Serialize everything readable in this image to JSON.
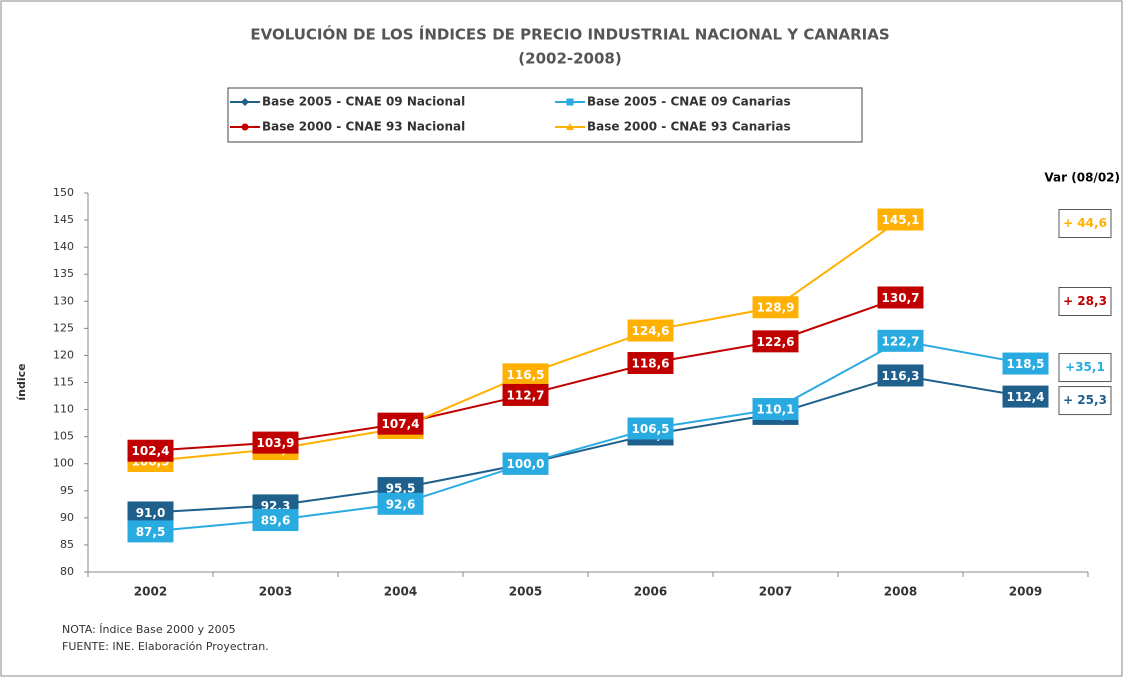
{
  "chart_data": {
    "type": "line",
    "title": "EVOLUCIÓN DE LOS ÍNDICES DE PRECIO INDUSTRIAL NACIONAL Y CANARIAS",
    "subtitle": "(2002-2008)",
    "y_label": "índice",
    "categories": [
      "2002",
      "2003",
      "2004",
      "2005",
      "2006",
      "2007",
      "2008",
      "2009"
    ],
    "ylim": [
      80,
      150
    ],
    "yticks": [
      80,
      85,
      90,
      95,
      100,
      105,
      110,
      115,
      120,
      125,
      130,
      135,
      140,
      145,
      150
    ],
    "var_title": "Var (08/02)",
    "series": [
      {
        "name": "Base 2005 - CNAE 09 Nacional",
        "color": "#1f5f8b",
        "marker": "diamond",
        "values": [
          91.0,
          92.3,
          95.5,
          100.0,
          105.4,
          109.2,
          116.3,
          112.4
        ],
        "value_labels": [
          "91,0",
          "92,3",
          "95,5",
          "100,0",
          "105,4",
          "109,2",
          "116,3",
          "112,4"
        ],
        "var_label": "+ 25,3"
      },
      {
        "name": "Base 2005 - CNAE 09 Canarias",
        "color": "#29abe2",
        "marker": "square",
        "values": [
          87.5,
          89.6,
          92.6,
          100.0,
          106.5,
          110.1,
          122.7,
          118.5
        ],
        "value_labels": [
          "87,5",
          "89,6",
          "92,6",
          "100,0",
          "106,5",
          "110,1",
          "122,7",
          "118,5"
        ],
        "var_label": "+35,1"
      },
      {
        "name": "Base 2000 - CNAE 93 Nacional",
        "color": "#c00000",
        "marker": "circle",
        "values": [
          102.4,
          103.9,
          107.4,
          112.7,
          118.6,
          122.6,
          130.7,
          null
        ],
        "value_labels": [
          "102,4",
          "103,9",
          "107,4",
          "112,7",
          "118,6",
          "122,6",
          "130,7",
          null
        ],
        "var_label": "+ 28,3"
      },
      {
        "name": "Base 2000 - CNAE 93 Canarias",
        "color": "#ffb000",
        "marker": "triangle",
        "values": [
          100.5,
          102.7,
          106.6,
          116.5,
          124.6,
          128.9,
          145.1,
          null
        ],
        "value_labels": [
          "100,5",
          "102,7",
          "106,6",
          "116,5",
          "124,6",
          "128,9",
          "145,1",
          null
        ],
        "var_label": "+ 44,6"
      }
    ],
    "notes": [
      "NOTA: Índice Base 2000 y 2005",
      "FUENTE: INE. Elaboración Proyectran."
    ]
  }
}
